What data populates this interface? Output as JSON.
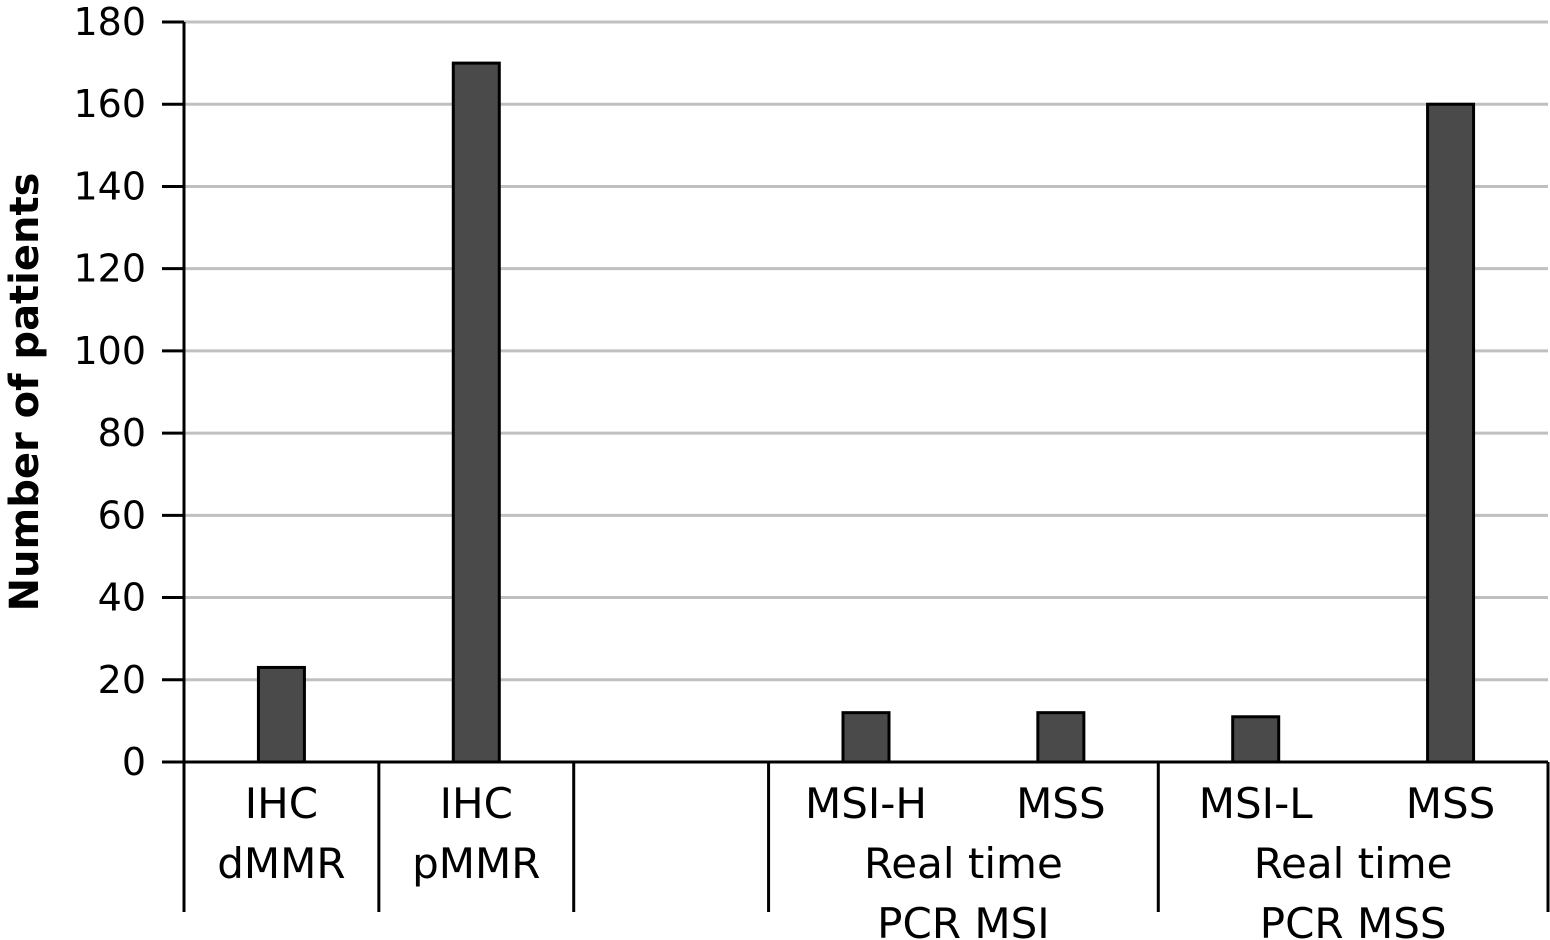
{
  "chart_data": {
    "type": "bar",
    "ylabel": "Number of patients",
    "xlabel": "",
    "ylim": [
      0,
      180
    ],
    "yticks": [
      0,
      20,
      40,
      60,
      80,
      100,
      120,
      140,
      160,
      180
    ],
    "grid": true,
    "bar_color": "#4a4a4a",
    "categories": [
      {
        "label_lines": [
          "IHC",
          "dMMR"
        ],
        "value": 23
      },
      {
        "label_lines": [
          "IHC",
          "pMMR"
        ],
        "value": 170
      },
      {
        "label_lines": [],
        "value": null
      },
      {
        "label_lines": [
          "MSI-H"
        ],
        "value": 12
      },
      {
        "label_lines": [
          "MSS"
        ],
        "value": 12
      },
      {
        "label_lines": [
          "MSI-L"
        ],
        "value": 11
      },
      {
        "label_lines": [
          "MSS"
        ],
        "value": 160
      }
    ],
    "groups": [
      {
        "label_lines": [
          "Real time",
          "PCR MSI"
        ],
        "start": 3,
        "end": 4
      },
      {
        "label_lines": [
          "Real time",
          "PCR MSS"
        ],
        "start": 5,
        "end": 6
      }
    ]
  }
}
